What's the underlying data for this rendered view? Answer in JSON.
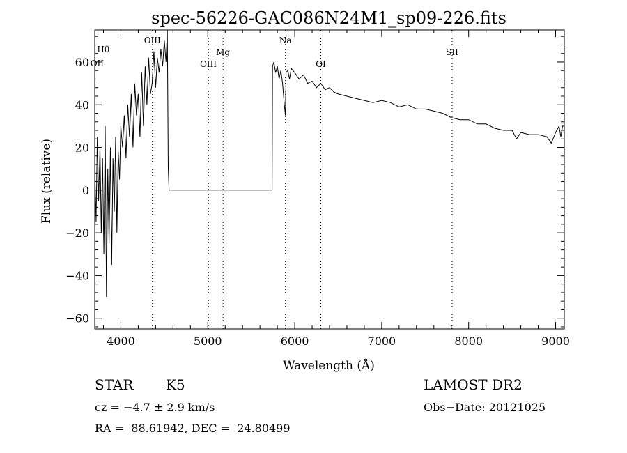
{
  "chart_data": {
    "type": "line",
    "title": "spec-56226-GAC086N24M1_sp09-226.fits",
    "xlabel": "Wavelength (Å)",
    "ylabel": "Flux (relative)",
    "xlim": [
      3700,
      9100
    ],
    "ylim": [
      -65,
      75
    ],
    "xticks": [
      4000,
      5000,
      6000,
      7000,
      8000,
      9000
    ],
    "yticks": [
      -60,
      -40,
      -20,
      0,
      20,
      40,
      60
    ],
    "grid": false,
    "lines": [
      {
        "label": "Hθ",
        "wavelength": 3798
      },
      {
        "label": "OII",
        "wavelength": 3727
      },
      {
        "label": "OIII",
        "wavelength": 4363
      },
      {
        "label": "OIII",
        "wavelength": 5007
      },
      {
        "label": "Mg",
        "wavelength": 5175
      },
      {
        "label": "Na",
        "wavelength": 5893
      },
      {
        "label": "OI",
        "wavelength": 6300
      },
      {
        "label": "SII",
        "wavelength": 7810
      }
    ],
    "series": [
      {
        "x": [
          3700,
          3715,
          3730,
          3745,
          3760,
          3775,
          3790,
          3805,
          3820,
          3835,
          3850,
          3865,
          3880,
          3895,
          3910,
          3925,
          3940,
          3955,
          3970,
          3985,
          4000,
          4020,
          4040,
          4060,
          4080,
          4100,
          4120,
          4140,
          4160,
          4180,
          4200,
          4220,
          4240,
          4260,
          4280,
          4300,
          4320,
          4340,
          4360,
          4380,
          4400,
          4420,
          4440,
          4460,
          4480,
          4500,
          4520,
          4535,
          4545,
          4555,
          4565,
          5000,
          5500,
          5740,
          5745,
          5760,
          5780,
          5800,
          5820,
          5840,
          5860,
          5880,
          5893,
          5900,
          5920,
          5940,
          5960,
          6000,
          6050,
          6100,
          6150,
          6200,
          6250,
          6300,
          6350,
          6400,
          6450,
          6500,
          6600,
          6700,
          6800,
          6900,
          7000,
          7100,
          7200,
          7300,
          7400,
          7500,
          7600,
          7700,
          7800,
          7900,
          8000,
          8100,
          8200,
          8300,
          8400,
          8500,
          8550,
          8600,
          8700,
          8800,
          8900,
          8950,
          9000,
          9040,
          9060,
          9080,
          9100
        ],
        "y": [
          10,
          -15,
          25,
          -5,
          20,
          -20,
          15,
          -30,
          30,
          -50,
          10,
          -25,
          20,
          -35,
          15,
          -10,
          25,
          -20,
          18,
          5,
          30,
          20,
          35,
          15,
          40,
          25,
          45,
          20,
          50,
          35,
          45,
          25,
          55,
          30,
          58,
          40,
          62,
          45,
          50,
          65,
          48,
          62,
          55,
          66,
          58,
          70,
          60,
          75,
          10,
          0,
          0,
          0,
          0,
          0,
          58,
          60,
          55,
          58,
          52,
          56,
          50,
          40,
          35,
          55,
          56,
          52,
          57,
          55,
          52,
          54,
          50,
          51,
          48,
          50,
          47,
          48,
          46,
          45,
          44,
          43,
          42,
          41,
          42,
          41,
          39,
          40,
          38,
          38,
          37,
          36,
          34,
          33,
          33,
          31,
          31,
          29,
          28,
          28,
          24,
          27,
          26,
          26,
          25,
          22,
          27,
          30,
          25,
          30,
          30
        ]
      }
    ],
    "annotations": {
      "object": "STAR",
      "subclass": "K5",
      "survey": "LAMOST DR2",
      "cz": "cz = −4.7 ± 2.9 km/s",
      "obs_date": "Obs−Date: 20121025",
      "coords": "RA =  88.61942, DEC =  24.80499"
    }
  }
}
